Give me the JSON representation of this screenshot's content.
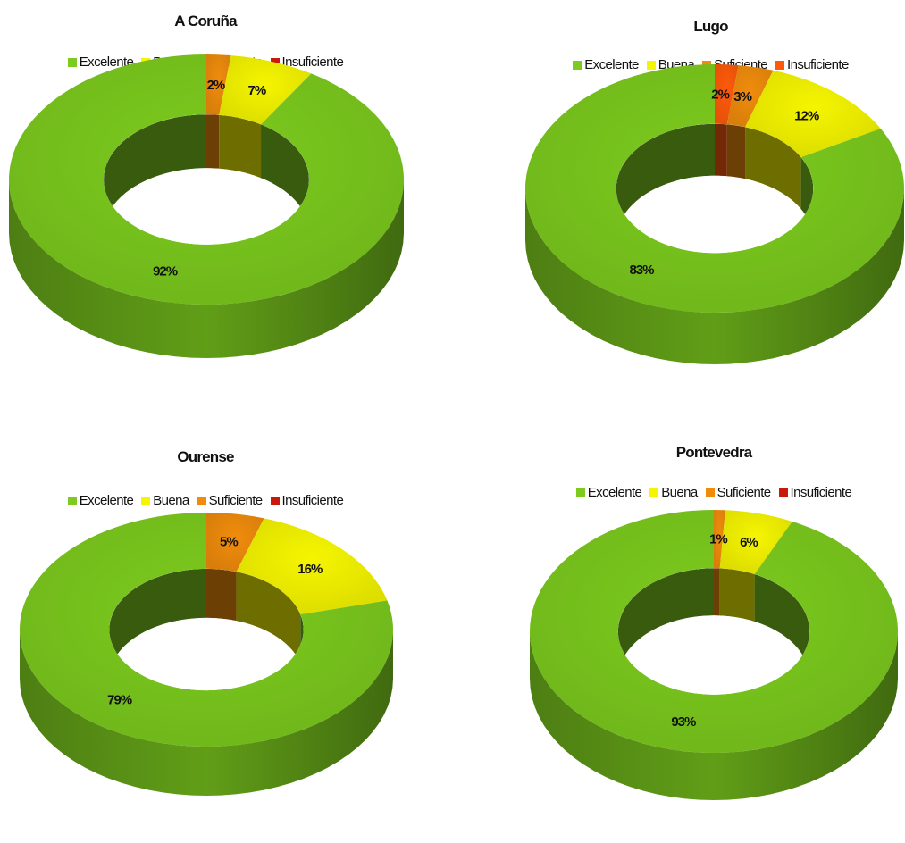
{
  "colors": {
    "Excelente": "#7ccb1e",
    "Buena": "#f5f500",
    "Suficiente": "#f08c0c",
    "Insuficiente_red": "#c8190a",
    "Insuficiente_orange": "#ff5a0a"
  },
  "chart_data": [
    {
      "type": "donut",
      "title": "A Coruña",
      "legend_position": "top",
      "legend": [
        "Excelente",
        "Buena",
        "Suficiente",
        "Insuficiente"
      ],
      "series": [
        {
          "name": "Insuficiente",
          "value": 0,
          "label": "",
          "color": "#c8190a"
        },
        {
          "name": "Suficiente",
          "value": 2,
          "label": "2%",
          "color": "#f08c0c"
        },
        {
          "name": "Buena",
          "value": 7,
          "label": "7%",
          "color": "#f5f500"
        },
        {
          "name": "Excelente",
          "value": 92,
          "label": "92%",
          "color": "#7ccb1e"
        }
      ]
    },
    {
      "type": "donut",
      "title": "Lugo",
      "legend_position": "top",
      "legend": [
        "Excelente",
        "Buena",
        "Suficiente",
        "Insuficiente"
      ],
      "series": [
        {
          "name": "Insuficiente",
          "value": 2,
          "label": "2%",
          "color": "#ff5a0a"
        },
        {
          "name": "Suficiente",
          "value": 3,
          "label": "3%",
          "color": "#f08c0c"
        },
        {
          "name": "Buena",
          "value": 12,
          "label": "12%",
          "color": "#f5f500"
        },
        {
          "name": "Excelente",
          "value": 83,
          "label": "83%",
          "color": "#7ccb1e"
        }
      ]
    },
    {
      "type": "donut",
      "title": "Ourense",
      "legend_position": "top",
      "legend": [
        "Excelente",
        "Buena",
        "Suficiente",
        "Insuficiente"
      ],
      "series": [
        {
          "name": "Insuficiente",
          "value": 0,
          "label": "",
          "color": "#c8190a"
        },
        {
          "name": "Suficiente",
          "value": 5,
          "label": "5%",
          "color": "#f08c0c"
        },
        {
          "name": "Buena",
          "value": 16,
          "label": "16%",
          "color": "#f5f500"
        },
        {
          "name": "Excelente",
          "value": 79,
          "label": "79%",
          "color": "#7ccb1e"
        }
      ]
    },
    {
      "type": "donut",
      "title": "Pontevedra",
      "legend_position": "top",
      "legend": [
        "Excelente",
        "Buena",
        "Suficiente",
        "Insuficiente"
      ],
      "series": [
        {
          "name": "Insuficiente",
          "value": 0,
          "label": "",
          "color": "#c8190a"
        },
        {
          "name": "Suficiente",
          "value": 1,
          "label": "1%",
          "color": "#f08c0c"
        },
        {
          "name": "Buena",
          "value": 6,
          "label": "6%",
          "color": "#f5f500"
        },
        {
          "name": "Excelente",
          "value": 93,
          "label": "93%",
          "color": "#7ccb1e"
        }
      ]
    }
  ]
}
